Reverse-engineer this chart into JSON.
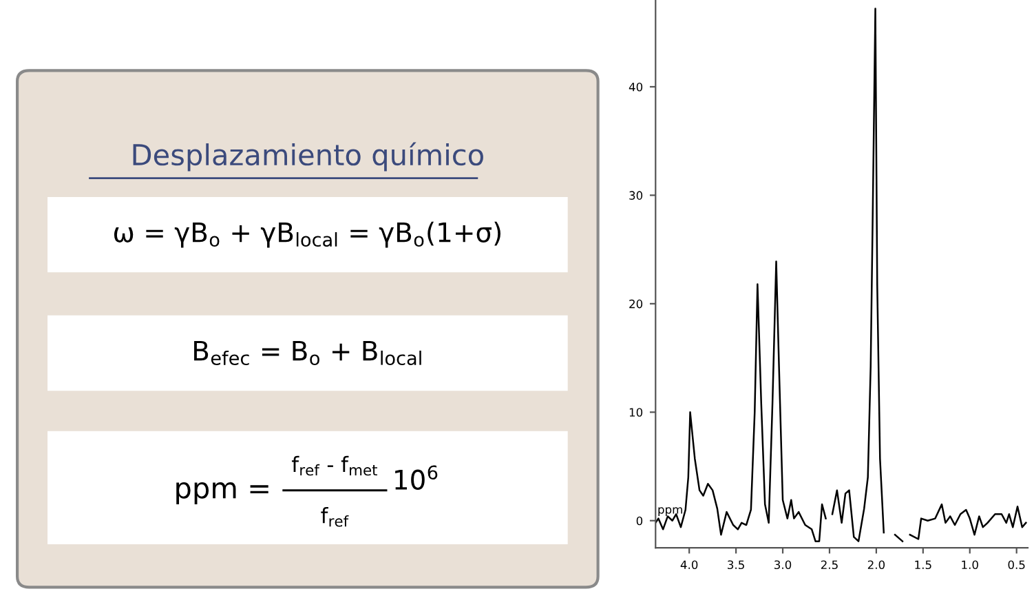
{
  "chart_data": [
    {
      "type": "other",
      "title": "Desplazamiento químico",
      "annotations": [
        "ω = γB$_{o}$ + γB$_{local}$ = γB$_{o}$(1+σ)",
        "B$_{efec}$ = B$_{o}$ + B$_{local}$",
        "ppm =",
        "f$_{ref}$ - f$_{met}$",
        "f$_{ref}$",
        "10$^{6}$"
      ]
    },
    {
      "type": "line",
      "x": [
        4.36,
        4.33,
        4.28,
        4.23,
        4.18,
        4.14,
        4.09,
        4.04,
        4.01,
        3.99,
        3.94,
        3.89,
        3.85,
        3.8,
        3.75,
        3.7,
        3.66,
        3.6,
        3.53,
        3.48,
        3.44,
        3.39,
        3.34,
        3.3,
        3.27,
        3.23,
        3.19,
        3.15,
        3.11,
        3.07,
        3.04,
        3.0,
        2.95,
        2.91,
        2.88,
        2.83,
        2.76,
        2.69,
        2.65,
        2.61,
        2.58,
        2.54,
        2.51,
        2.47,
        2.42,
        2.37,
        2.33,
        2.29,
        2.24,
        2.19,
        2.13,
        2.09,
        2.06,
        2.04,
        2.01,
        1.99,
        1.96,
        1.92,
        1.87,
        1.8,
        1.72,
        1.69,
        1.64,
        1.55,
        1.52,
        1.45,
        1.37,
        1.3,
        1.26,
        1.21,
        1.16,
        1.1,
        1.04,
        1.0,
        0.95,
        0.9,
        0.86,
        0.81,
        0.73,
        0.66,
        0.61,
        0.58,
        0.54,
        0.49,
        0.44,
        0.4
      ],
      "series": [
        {
          "color": "#000000",
          "values": [
            -0.2,
            0.2,
            -0.8,
            0.4,
            0,
            0.6,
            -0.6,
            1.0,
            4.0,
            10.0,
            5.7,
            2.8,
            2.3,
            3.4,
            2.8,
            1.1,
            -1.3,
            0.8,
            -0.4,
            -0.8,
            -0.2,
            -0.4,
            1.0,
            10,
            21.8,
            10.8,
            1.5,
            -0.2,
            10.8,
            23.9,
            14.2,
            1.9,
            0.2,
            1.9,
            0.2,
            0.8,
            -0.4,
            -0.8,
            -1.9,
            -1.9,
            1.5,
            0.2,
            null,
            0.6,
            2.8,
            -0.2,
            2.5,
            2.8,
            -1.5,
            -1.9,
            1.1,
            4.0,
            14.2,
            26.9,
            47.2,
            21.8,
            5.7,
            -1.1,
            null,
            -1.3,
            -1.9,
            null,
            -1.3,
            -1.7,
            0.2,
            0,
            0.2,
            1.5,
            -0.2,
            0.4,
            -0.4,
            0.6,
            1.0,
            0.2,
            -1.3,
            0.4,
            -0.6,
            -0.2,
            0.6,
            0.6,
            -0.2,
            0.6,
            -0.6,
            1.3,
            -0.6,
            -0.2
          ]
        }
      ],
      "annotations": [
        "ppm"
      ],
      "xlim": [
        4.36,
        0.38
      ],
      "xticks": [
        {
          "value": 4,
          "label": "4.0"
        },
        {
          "value": 3.5,
          "label": "3.5"
        },
        {
          "value": 3,
          "label": "3.0"
        },
        {
          "value": 2.5,
          "label": "2.5"
        },
        {
          "value": 2,
          "label": "2.0"
        },
        {
          "value": 1.5,
          "label": "1.5"
        },
        {
          "value": 1,
          "label": "1.0"
        },
        {
          "value": 0.5,
          "label": "0.5"
        }
      ],
      "ylim": [
        -2.5,
        48
      ],
      "yticks": [
        0,
        10,
        20,
        30,
        40
      ],
      "grid": false,
      "legend": false
    }
  ]
}
